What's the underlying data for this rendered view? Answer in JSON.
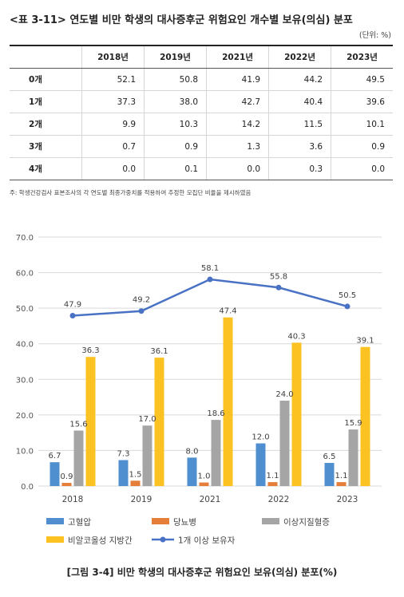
{
  "table": {
    "title": "<표 3-11> 연도별 비만 학생의 대사증후군 위험요인 개수별 보유(의심) 분포",
    "unit": "(단위: %)",
    "columns": [
      "2018년",
      "2019년",
      "2021년",
      "2022년",
      "2023년"
    ],
    "rows": [
      {
        "label": "0개",
        "values": [
          "52.1",
          "50.8",
          "41.9",
          "44.2",
          "49.5"
        ]
      },
      {
        "label": "1개",
        "values": [
          "37.3",
          "38.0",
          "42.7",
          "40.4",
          "39.6"
        ]
      },
      {
        "label": "2개",
        "values": [
          "9.9",
          "10.3",
          "14.2",
          "11.5",
          "10.1"
        ]
      },
      {
        "label": "3개",
        "values": [
          "0.7",
          "0.9",
          "1.3",
          "3.6",
          "0.9"
        ]
      },
      {
        "label": "4개",
        "values": [
          "0.0",
          "0.1",
          "0.0",
          "0.3",
          "0.0"
        ]
      }
    ],
    "note": "주: 학생건강검사 표본조사의 각 연도별 최종가중치를 적용하여 추정한 모집단 비율을 제시하였음"
  },
  "chart_data": {
    "type": "bar",
    "categories": [
      "2018",
      "2019",
      "2021",
      "2022",
      "2023"
    ],
    "ylim": [
      0,
      70
    ],
    "yticks": [
      "0.0",
      "10.0",
      "20.0",
      "30.0",
      "40.0",
      "50.0",
      "60.0",
      "70.0"
    ],
    "grid": true,
    "legend_position": "bottom",
    "series": [
      {
        "name": "고혈압",
        "kind": "bar",
        "color": "#4f8fcf",
        "values": [
          6.7,
          7.3,
          8.0,
          12.0,
          6.5
        ],
        "labels": [
          "6.7",
          "7.3",
          "8.0",
          "12.0",
          "6.5"
        ]
      },
      {
        "name": "당뇨병",
        "kind": "bar",
        "color": "#e57e38",
        "values": [
          0.9,
          1.5,
          1.0,
          1.1,
          1.1
        ],
        "labels": [
          "0.9",
          "1.5",
          "1.0",
          "1.1",
          "1.1"
        ]
      },
      {
        "name": "이상지질혈증",
        "kind": "bar",
        "color": "#a5a5a5",
        "values": [
          15.6,
          17.0,
          18.6,
          24.0,
          15.9
        ],
        "labels": [
          "15.6",
          "17.0",
          "18.6",
          "24.0",
          "15.9"
        ]
      },
      {
        "name": "비알코올성 지방간",
        "kind": "bar",
        "color": "#fbc222",
        "values": [
          36.3,
          36.1,
          47.4,
          40.3,
          39.1
        ],
        "labels": [
          "36.3",
          "36.1",
          "47.4",
          "40.3",
          "39.1"
        ]
      },
      {
        "name": "1개 이상 보유자",
        "kind": "line",
        "color": "#4a72c4",
        "values": [
          47.9,
          49.2,
          58.1,
          55.8,
          50.5
        ],
        "labels": [
          "47.9",
          "49.2",
          "58.1",
          "55.8",
          "50.5"
        ]
      }
    ]
  },
  "caption": "[그림 3-4] 비만 학생의 대사증후군 위험요인 보유(의심) 분포(%)"
}
